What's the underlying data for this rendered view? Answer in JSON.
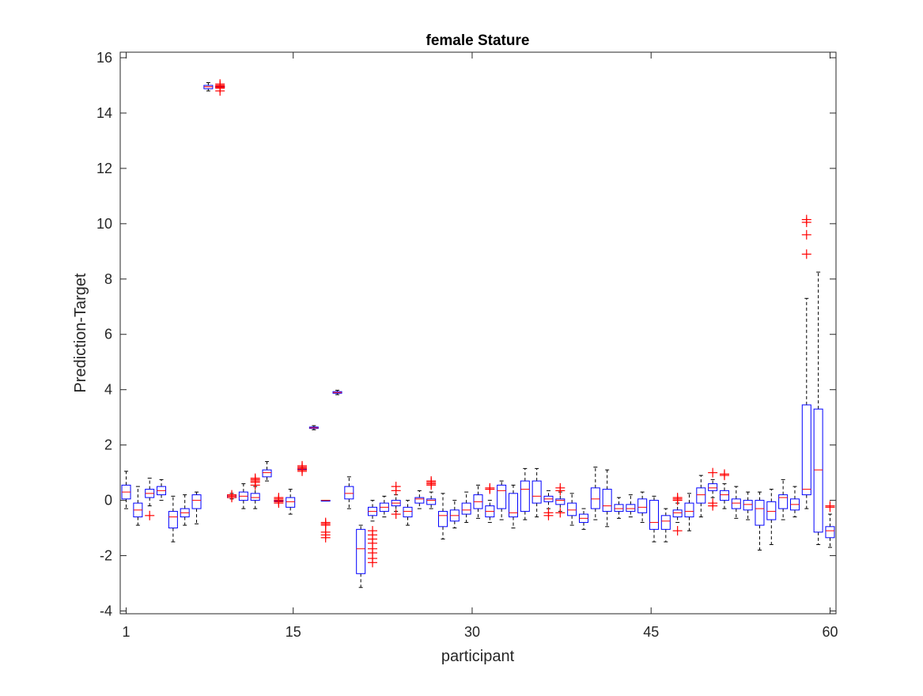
{
  "chart_data": {
    "type": "boxplot",
    "title": "female Stature",
    "xlabel": "participant",
    "ylabel": "Prediction-Target",
    "xlim": [
      0.5,
      60.5
    ],
    "ylim": [
      -4.1,
      16.2
    ],
    "xticks": [
      1,
      15,
      30,
      45,
      60
    ],
    "xtick_labels": [
      "1",
      "15",
      "30",
      "45",
      "60"
    ],
    "yticks": [
      -4,
      -2,
      0,
      2,
      4,
      6,
      8,
      10,
      12,
      14,
      16
    ],
    "ytick_labels": [
      "-4",
      "-2",
      "0",
      "2",
      "4",
      "6",
      "8",
      "10",
      "12",
      "14",
      "16"
    ],
    "colors": {
      "box": "#0000ff",
      "median": "#ff0000",
      "outlier": "#ff0000",
      "whisker": "#000000",
      "axis": "#262626"
    },
    "boxes": [
      {
        "x": 1,
        "q1": 0.05,
        "med": 0.3,
        "q3": 0.55,
        "lo": -0.3,
        "hi": 1.05,
        "out": []
      },
      {
        "x": 2,
        "q1": -0.6,
        "med": -0.35,
        "q3": -0.1,
        "lo": -0.9,
        "hi": 0.5,
        "out": []
      },
      {
        "x": 3,
        "q1": 0.1,
        "med": 0.25,
        "q3": 0.4,
        "lo": -0.2,
        "hi": 0.8,
        "out": [
          -0.55
        ]
      },
      {
        "x": 4,
        "q1": 0.2,
        "med": 0.35,
        "q3": 0.5,
        "lo": 0.0,
        "hi": 0.75,
        "out": []
      },
      {
        "x": 5,
        "q1": -1.0,
        "med": -0.6,
        "q3": -0.4,
        "lo": -1.5,
        "hi": 0.15,
        "out": []
      },
      {
        "x": 6,
        "q1": -0.6,
        "med": -0.45,
        "q3": -0.3,
        "lo": -0.9,
        "hi": 0.2,
        "out": []
      },
      {
        "x": 7,
        "q1": -0.3,
        "med": 0.0,
        "q3": 0.2,
        "lo": -0.85,
        "hi": 0.3,
        "out": []
      },
      {
        "x": 8,
        "q1": 14.88,
        "med": 14.95,
        "q3": 15.0,
        "lo": 14.8,
        "hi": 15.1,
        "out": []
      },
      {
        "x": 9,
        "q1": 14.97,
        "med": 14.97,
        "q3": 14.97,
        "lo": 14.97,
        "hi": 14.97,
        "out": [
          14.8,
          14.9,
          14.93,
          14.97,
          15.0,
          15.05
        ]
      },
      {
        "x": 10,
        "q1": 0.1,
        "med": 0.15,
        "q3": 0.2,
        "lo": 0.05,
        "hi": 0.25,
        "out": [
          0.1,
          0.15,
          0.2
        ]
      },
      {
        "x": 11,
        "q1": 0.0,
        "med": 0.15,
        "q3": 0.3,
        "lo": -0.3,
        "hi": 0.6,
        "out": []
      },
      {
        "x": 12,
        "q1": 0.0,
        "med": 0.1,
        "q3": 0.25,
        "lo": -0.3,
        "hi": 0.5,
        "out": [
          0.55,
          0.65,
          0.7,
          0.75,
          0.8
        ]
      },
      {
        "x": 13,
        "q1": 0.85,
        "med": 1.0,
        "q3": 1.1,
        "lo": 0.7,
        "hi": 1.4,
        "out": []
      },
      {
        "x": 14,
        "q1": 0.0,
        "med": 0.0,
        "q3": 0.0,
        "lo": 0.0,
        "hi": 0.0,
        "out": [
          -0.1,
          -0.05,
          0.0,
          0.05,
          0.1
        ]
      },
      {
        "x": 15,
        "q1": -0.25,
        "med": -0.05,
        "q3": 0.1,
        "lo": -0.5,
        "hi": 0.4,
        "out": []
      },
      {
        "x": 16,
        "q1": 1.15,
        "med": 1.15,
        "q3": 1.15,
        "lo": 1.15,
        "hi": 1.15,
        "out": [
          1.05,
          1.1,
          1.15,
          1.2,
          1.25
        ]
      },
      {
        "x": 17,
        "q1": 2.6,
        "med": 2.62,
        "q3": 2.65,
        "lo": 2.55,
        "hi": 2.7,
        "out": []
      },
      {
        "x": 18,
        "q1": 0.0,
        "med": 0.0,
        "q3": 0.0,
        "lo": 0.0,
        "hi": 0.0,
        "out": [
          -0.8,
          -0.85,
          -0.9,
          -1.15,
          -1.25,
          -1.35
        ]
      },
      {
        "x": 19,
        "q1": 3.87,
        "med": 3.9,
        "q3": 3.93,
        "lo": 3.82,
        "hi": 3.98,
        "out": []
      },
      {
        "x": 20,
        "q1": 0.05,
        "med": 0.25,
        "q3": 0.5,
        "lo": -0.3,
        "hi": 0.85,
        "out": []
      }
    ],
    "boxes_note": "",
    "boxes_b": [
      {
        "x": 21,
        "q1": -2.65,
        "med": -1.75,
        "q3": -1.05,
        "lo": -3.15,
        "hi": -0.9,
        "out": []
      },
      {
        "x": 22,
        "q1": -0.55,
        "med": -0.4,
        "q3": -0.25,
        "lo": -0.75,
        "hi": 0.0,
        "out": [
          -1.1,
          -1.25,
          -1.4,
          -1.55,
          -1.75,
          -1.9,
          -2.1,
          -2.25
        ]
      },
      {
        "x": 23,
        "q1": -0.4,
        "med": -0.25,
        "q3": -0.1,
        "lo": -0.6,
        "hi": 0.15,
        "out": []
      },
      {
        "x": 24,
        "q1": -0.2,
        "med": -0.1,
        "q3": 0.0,
        "lo": -0.4,
        "hi": 0.2,
        "out": [
          0.35,
          0.5,
          -0.5
        ]
      },
      {
        "x": 25,
        "q1": -0.6,
        "med": -0.4,
        "q3": -0.25,
        "lo": -0.9,
        "hi": 0.0,
        "out": []
      },
      {
        "x": 26,
        "q1": -0.1,
        "med": 0.05,
        "q3": 0.1,
        "lo": -0.3,
        "hi": 0.35,
        "out": []
      },
      {
        "x": 27,
        "q1": -0.15,
        "med": 0.0,
        "q3": 0.05,
        "lo": -0.3,
        "hi": 0.3,
        "out": [
          0.55,
          0.6,
          0.65,
          0.7
        ]
      },
      {
        "x": 28,
        "q1": -0.95,
        "med": -0.55,
        "q3": -0.4,
        "lo": -1.4,
        "hi": 0.25,
        "out": []
      },
      {
        "x": 29,
        "q1": -0.75,
        "med": -0.55,
        "q3": -0.35,
        "lo": -1.0,
        "hi": 0.0,
        "out": []
      },
      {
        "x": 30,
        "q1": -0.5,
        "med": -0.35,
        "q3": -0.1,
        "lo": -0.8,
        "hi": 0.3,
        "out": []
      },
      {
        "x": 31,
        "q1": -0.3,
        "med": -0.05,
        "q3": 0.2,
        "lo": -0.65,
        "hi": 0.55,
        "out": []
      }
    ],
    "series_ranges": [
      {
        "x_from": 32,
        "x_to": 60
      }
    ]
  }
}
